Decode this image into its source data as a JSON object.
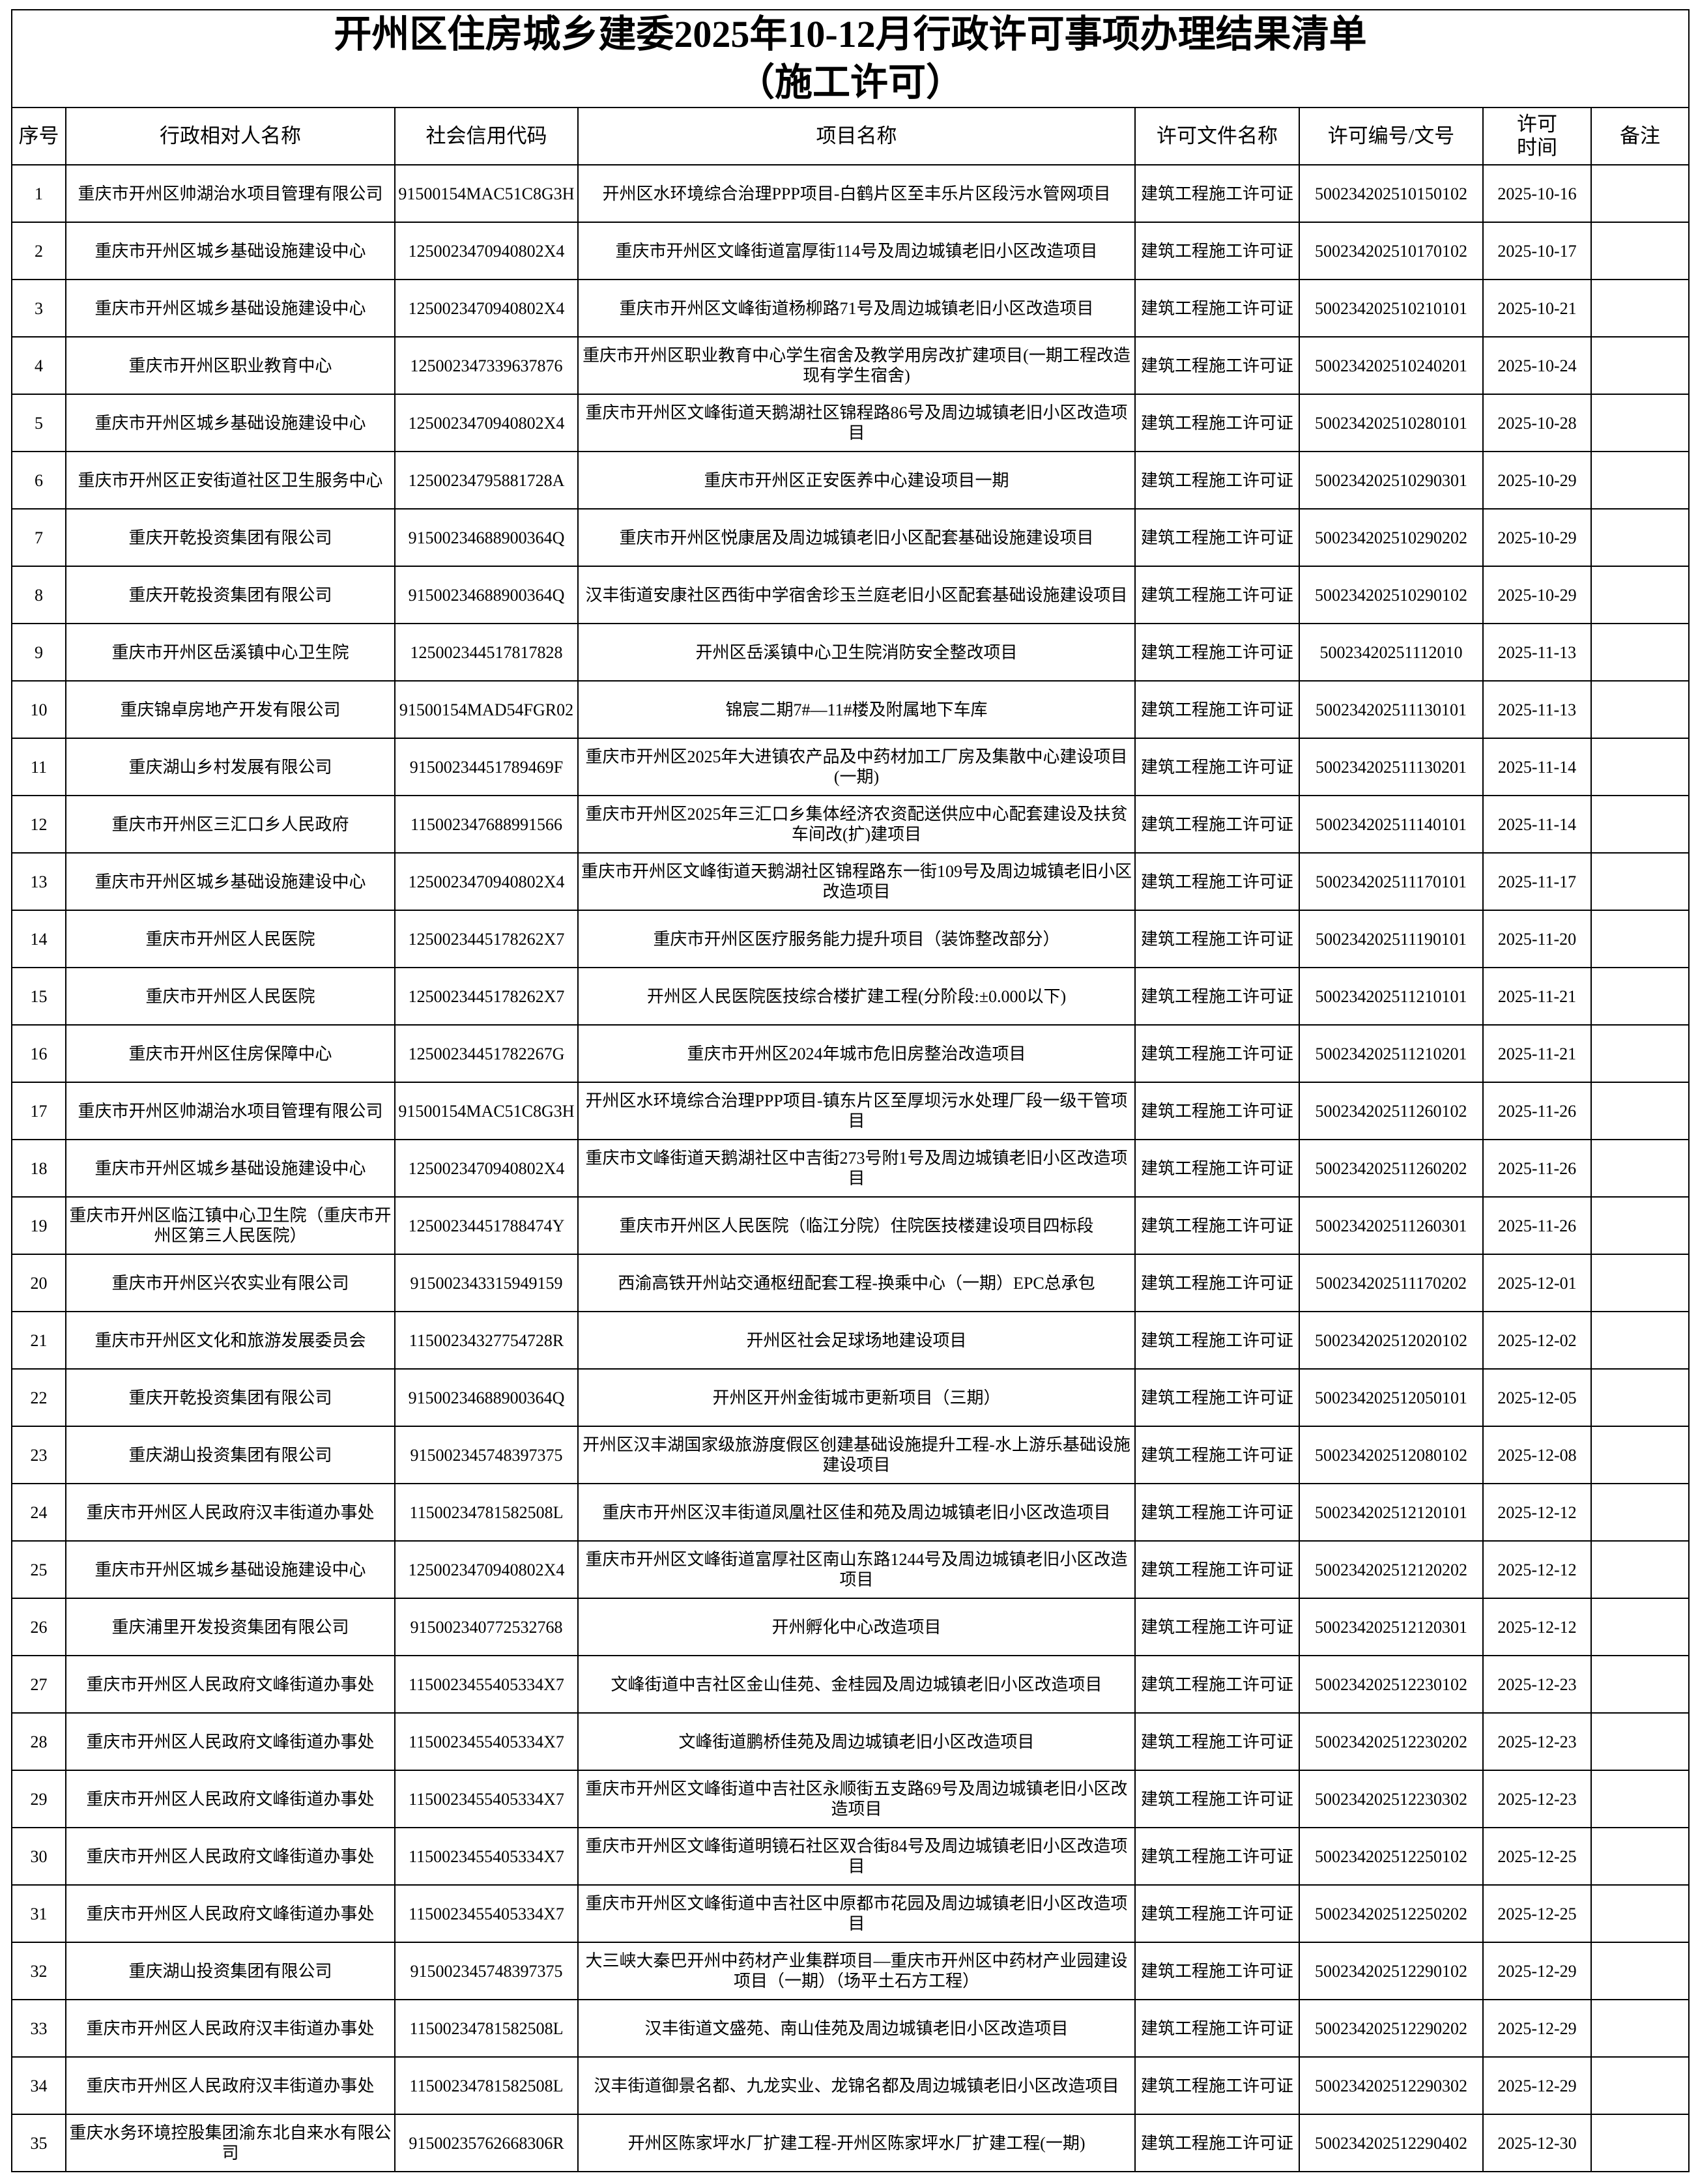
{
  "header": {
    "title": "开州区住房城乡建委2025年10-12月行政许可事项办理结果清单",
    "subtitle": "（施工许可）"
  },
  "table": {
    "headers": [
      "序号",
      "行政相对人名称",
      "社会信用代码",
      "项目名称",
      "许可文件名称",
      "许可编号/文号",
      "许可\n时间",
      "备注"
    ],
    "rows": [
      [
        1,
        "重庆市开州区帅湖治水项目管理有限公司",
        "91500154MAC51C8G3H",
        "开州区水环境综合治理PPP项目-白鹤片区至丰乐片区段污水管网项目",
        "建筑工程施工许可证",
        "500234202510150102",
        "2025-10-16"
      ],
      [
        2,
        "重庆市开州区城乡基础设施建设中心",
        "1250023470940802X4",
        "重庆市开州区文峰街道富厚街114号及周边城镇老旧小区改造项目",
        "建筑工程施工许可证",
        "500234202510170102",
        "2025-10-17"
      ],
      [
        3,
        "重庆市开州区城乡基础设施建设中心",
        "1250023470940802X4",
        "重庆市开州区文峰街道杨柳路71号及周边城镇老旧小区改造项目",
        "建筑工程施工许可证",
        "500234202510210101",
        "2025-10-21"
      ],
      [
        4,
        "重庆市开州区职业教育中心",
        "125002347339637876",
        "重庆市开州区职业教育中心学生宿舍及教学用房改扩建项目(一期工程改造现有学生宿舍)",
        "建筑工程施工许可证",
        "500234202510240201",
        "2025-10-24"
      ],
      [
        5,
        "重庆市开州区城乡基础设施建设中心",
        "1250023470940802X4",
        "重庆市开州区文峰街道天鹅湖社区锦程路86号及周边城镇老旧小区改造项目",
        "建筑工程施工许可证",
        "500234202510280101",
        "2025-10-28"
      ],
      [
        6,
        "重庆市开州区正安街道社区卫生服务中心",
        "12500234795881728A",
        "重庆市开州区正安医养中心建设项目一期",
        "建筑工程施工许可证",
        "500234202510290301",
        "2025-10-29"
      ],
      [
        7,
        "重庆开乾投资集团有限公司",
        "91500234688900364Q",
        "重庆市开州区悦康居及周边城镇老旧小区配套基础设施建设项目",
        "建筑工程施工许可证",
        "500234202510290202",
        "2025-10-29"
      ],
      [
        8,
        "重庆开乾投资集团有限公司",
        "91500234688900364Q",
        "汉丰街道安康社区西街中学宿舍珍玉兰庭老旧小区配套基础设施建设项目",
        "建筑工程施工许可证",
        "500234202510290102",
        "2025-10-29"
      ],
      [
        9,
        "重庆市开州区岳溪镇中心卫生院",
        "125002344517817828",
        "开州区岳溪镇中心卫生院消防安全整改项目",
        "建筑工程施工许可证",
        "50023420251112010",
        "2025-11-13"
      ],
      [
        10,
        "重庆锦卓房地产开发有限公司",
        "91500154MAD54FGR02",
        "锦宸二期7#—11#楼及附属地下车库",
        "建筑工程施工许可证",
        "500234202511130101",
        "2025-11-13"
      ],
      [
        11,
        "重庆湖山乡村发展有限公司",
        "91500234451789469F",
        "重庆市开州区2025年大进镇农产品及中药材加工厂房及集散中心建设项目(一期)",
        "建筑工程施工许可证",
        "500234202511130201",
        "2025-11-14"
      ],
      [
        12,
        "重庆市开州区三汇口乡人民政府",
        "115002347688991566",
        "重庆市开州区2025年三汇口乡集体经济农资配送供应中心配套建设及扶贫车间改(扩)建项目",
        "建筑工程施工许可证",
        "500234202511140101",
        "2025-11-14"
      ],
      [
        13,
        "重庆市开州区城乡基础设施建设中心",
        "1250023470940802X4",
        "重庆市开州区文峰街道天鹅湖社区锦程路东一街109号及周边城镇老旧小区改造项目",
        "建筑工程施工许可证",
        "500234202511170101",
        "2025-11-17"
      ],
      [
        14,
        "重庆市开州区人民医院",
        "1250023445178262X7",
        "重庆市开州区医疗服务能力提升项目（装饰整改部分）",
        "建筑工程施工许可证",
        "500234202511190101",
        "2025-11-20"
      ],
      [
        15,
        "重庆市开州区人民医院",
        "1250023445178262X7",
        "开州区人民医院医技综合楼扩建工程(分阶段:±0.000以下)",
        "建筑工程施工许可证",
        "500234202511210101",
        "2025-11-21"
      ],
      [
        16,
        "重庆市开州区住房保障中心",
        "12500234451782267G",
        "重庆市开州区2024年城市危旧房整治改造项目",
        "建筑工程施工许可证",
        "500234202511210201",
        "2025-11-21"
      ],
      [
        17,
        "重庆市开州区帅湖治水项目管理有限公司",
        "91500154MAC51C8G3H",
        "开州区水环境综合治理PPP项目-镇东片区至厚坝污水处理厂段一级干管项目",
        "建筑工程施工许可证",
        "500234202511260102",
        "2025-11-26"
      ],
      [
        18,
        "重庆市开州区城乡基础设施建设中心",
        "1250023470940802X4",
        "重庆市文峰街道天鹅湖社区中吉街273号附1号及周边城镇老旧小区改造项目",
        "建筑工程施工许可证",
        "500234202511260202",
        "2025-11-26"
      ],
      [
        19,
        "重庆市开州区临江镇中心卫生院（重庆市开州区第三人民医院）",
        "12500234451788474Y",
        "重庆市开州区人民医院（临江分院）住院医技楼建设项目四标段",
        "建筑工程施工许可证",
        "500234202511260301",
        "2025-11-26"
      ],
      [
        20,
        "重庆市开州区兴农实业有限公司",
        "915002343315949159",
        "西渝高铁开州站交通枢纽配套工程-换乘中心（一期）EPC总承包",
        "建筑工程施工许可证",
        "500234202511170202",
        "2025-12-01"
      ],
      [
        21,
        "重庆市开州区文化和旅游发展委员会",
        "11500234327754728R",
        "开州区社会足球场地建设项目",
        "建筑工程施工许可证",
        "500234202512020102",
        "2025-12-02"
      ],
      [
        22,
        "重庆开乾投资集团有限公司",
        "91500234688900364Q",
        "开州区开州金街城市更新项目（三期）",
        "建筑工程施工许可证",
        "500234202512050101",
        "2025-12-05"
      ],
      [
        23,
        "重庆湖山投资集团有限公司",
        "915002345748397375",
        "开州区汉丰湖国家级旅游度假区创建基础设施提升工程-水上游乐基础设施建设项目",
        "建筑工程施工许可证",
        "500234202512080102",
        "2025-12-08"
      ],
      [
        24,
        "重庆市开州区人民政府汉丰街道办事处",
        "11500234781582508L",
        "重庆市开州区汉丰街道凤凰社区佳和苑及周边城镇老旧小区改造项目",
        "建筑工程施工许可证",
        "500234202512120101",
        "2025-12-12"
      ],
      [
        25,
        "重庆市开州区城乡基础设施建设中心",
        "1250023470940802X4",
        "重庆市开州区文峰街道富厚社区南山东路1244号及周边城镇老旧小区改造项目",
        "建筑工程施工许可证",
        "500234202512120202",
        "2025-12-12"
      ],
      [
        26,
        "重庆浦里开发投资集团有限公司",
        "915002340772532768",
        "开州孵化中心改造项目",
        "建筑工程施工许可证",
        "500234202512120301",
        "2025-12-12"
      ],
      [
        27,
        "重庆市开州区人民政府文峰街道办事处",
        "1150023455405334X7",
        "文峰街道中吉社区金山佳苑、金桂园及周边城镇老旧小区改造项目",
        "建筑工程施工许可证",
        "500234202512230102",
        "2025-12-23"
      ],
      [
        28,
        "重庆市开州区人民政府文峰街道办事处",
        "1150023455405334X7",
        "文峰街道鹏桥佳苑及周边城镇老旧小区改造项目",
        "建筑工程施工许可证",
        "500234202512230202",
        "2025-12-23"
      ],
      [
        29,
        "重庆市开州区人民政府文峰街道办事处",
        "1150023455405334X7",
        "重庆市开州区文峰街道中吉社区永顺街五支路69号及周边城镇老旧小区改造项目",
        "建筑工程施工许可证",
        "500234202512230302",
        "2025-12-23"
      ],
      [
        30,
        "重庆市开州区人民政府文峰街道办事处",
        "1150023455405334X7",
        "重庆市开州区文峰街道明镜石社区双合街84号及周边城镇老旧小区改造项目",
        "建筑工程施工许可证",
        "500234202512250102",
        "2025-12-25"
      ],
      [
        31,
        "重庆市开州区人民政府文峰街道办事处",
        "1150023455405334X7",
        "重庆市开州区文峰街道中吉社区中原都市花园及周边城镇老旧小区改造项目",
        "建筑工程施工许可证",
        "500234202512250202",
        "2025-12-25"
      ],
      [
        32,
        "重庆湖山投资集团有限公司",
        "915002345748397375",
        "大三峡大秦巴开州中药材产业集群项目—重庆市开州区中药材产业园建设项目（一期）（场平土石方工程）",
        "建筑工程施工许可证",
        "500234202512290102",
        "2025-12-29"
      ],
      [
        33,
        "重庆市开州区人民政府汉丰街道办事处",
        "11500234781582508L",
        "汉丰街道文盛苑、南山佳苑及周边城镇老旧小区改造项目",
        "建筑工程施工许可证",
        "500234202512290202",
        "2025-12-29"
      ],
      [
        34,
        "重庆市开州区人民政府汉丰街道办事处",
        "11500234781582508L",
        "汉丰街道御景名都、九龙实业、龙锦名都及周边城镇老旧小区改造项目",
        "建筑工程施工许可证",
        "500234202512290302",
        "2025-12-29"
      ],
      [
        35,
        "重庆水务环境控股集团渝东北自来水有限公司",
        "91500235762668306R",
        "开州区陈家坪水厂扩建工程-开州区陈家坪水厂扩建工程(一期)",
        "建筑工程施工许可证",
        "500234202512290402",
        "2025-12-30"
      ]
    ]
  }
}
